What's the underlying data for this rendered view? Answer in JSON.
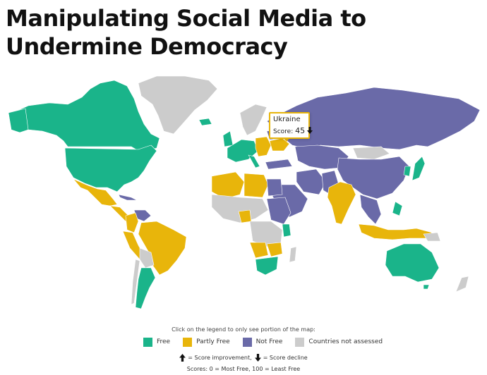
{
  "title": "Manipulating Social Media to Undermine Democracy",
  "colors": {
    "free": "#1ab48a",
    "partly_free": "#e8b50b",
    "not_free": "#6a6aa8",
    "not_assessed": "#cccccc",
    "tooltip_border": "#e8b50b"
  },
  "tooltip": {
    "country": "Ukraine",
    "score_label": "Score:",
    "score_value": "45",
    "trend_icon": "arrow-down"
  },
  "legend": {
    "hint": "Click on the legend to only see portion of the map:",
    "items": [
      {
        "label": "Free",
        "color": "#1ab48a"
      },
      {
        "label": "Partly Free",
        "color": "#e8b50b"
      },
      {
        "label": "Not Free",
        "color": "#6a6aa8"
      },
      {
        "label": "Countries not assessed",
        "color": "#cccccc"
      }
    ]
  },
  "notes": {
    "improvement": "= Score improvement,",
    "decline": "= Score decline",
    "scores": "Scores: 0 = Most Free, 100 = Least Free"
  }
}
